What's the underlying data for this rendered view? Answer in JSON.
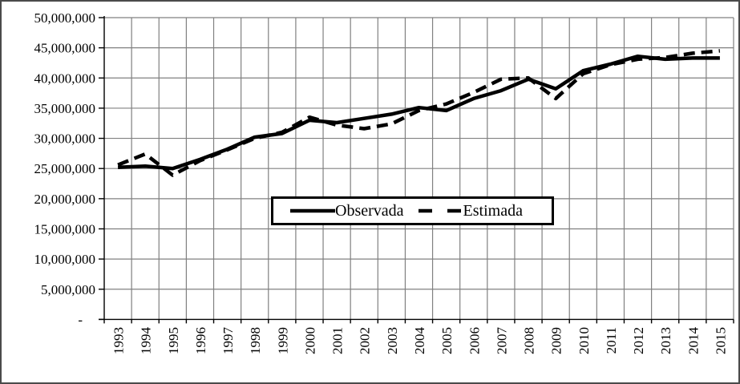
{
  "chart_data": {
    "type": "line",
    "x": [
      "1993",
      "1994",
      "1995",
      "1996",
      "1997",
      "1998",
      "1999",
      "2000",
      "2001",
      "2002",
      "2003",
      "2004",
      "2005",
      "2006",
      "2007",
      "2008",
      "2009",
      "2010",
      "2011",
      "2012",
      "2013",
      "2014",
      "2015"
    ],
    "series": [
      {
        "name": "Observada",
        "style": "solid",
        "color": "#000000",
        "values": [
          25200000,
          25400000,
          25000000,
          26500000,
          28200000,
          30200000,
          30800000,
          33000000,
          32600000,
          33300000,
          34000000,
          35100000,
          34600000,
          36600000,
          37900000,
          39800000,
          38200000,
          41200000,
          42300000,
          43600000,
          43100000,
          43300000,
          43300000
        ]
      },
      {
        "name": "Estimada",
        "style": "dashed",
        "color": "#000000",
        "values": [
          25600000,
          27400000,
          23900000,
          26300000,
          28100000,
          30000000,
          31000000,
          33500000,
          32200000,
          31600000,
          32400000,
          34600000,
          35700000,
          37600000,
          39800000,
          40000000,
          36600000,
          40700000,
          42200000,
          43100000,
          43400000,
          44100000,
          44500000
        ]
      }
    ],
    "title": "",
    "xlabel": "",
    "ylabel": "",
    "ylim": [
      0,
      50000000
    ],
    "y_tick_interval": 5000000,
    "y_tick_labels": [
      "50,000,000",
      "45,000,000",
      "40,000,000",
      "35,000,000",
      "30,000,000",
      "25,000,000",
      "20,000,000",
      "15,000,000",
      "10,000,000",
      "5,000,000",
      "-"
    ],
    "grid": true,
    "legend_position": "center-middle",
    "gridline_color": "#808080",
    "axis_color": "#000000",
    "background_color": "#ffffff",
    "frame_border_color": "#4a4a4a"
  }
}
